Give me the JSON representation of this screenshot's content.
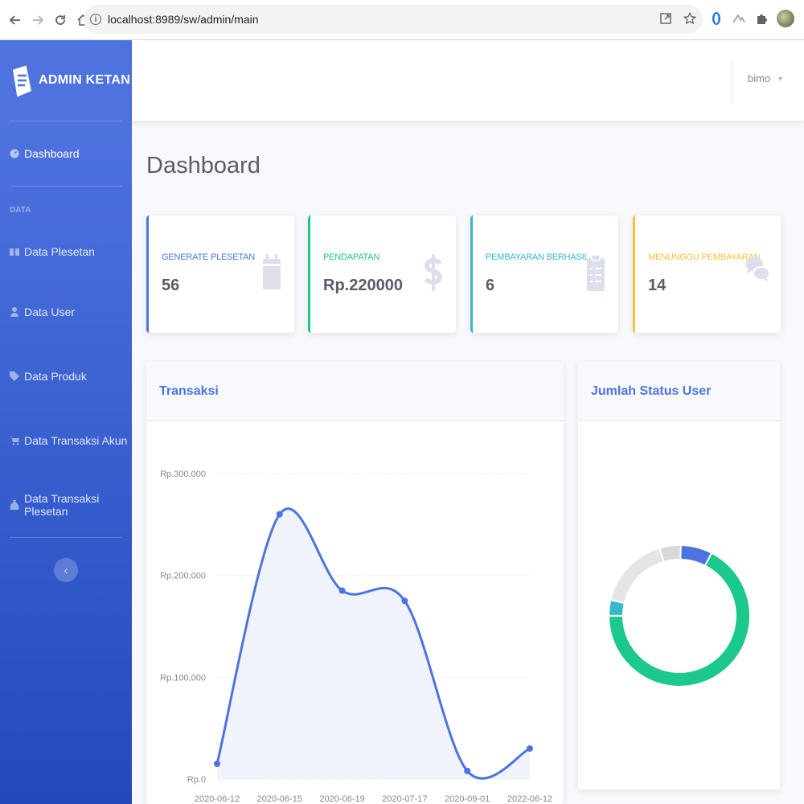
{
  "browser": {
    "url": "localhost:8989/sw/admin/main",
    "back_icon": "arrow-left",
    "forward_icon": "arrow-right",
    "reload_icon": "reload",
    "home_icon": "home"
  },
  "sidebar": {
    "brand": "ADMIN KETAN",
    "dashboard_label": "Dashboard",
    "heading": "DATA",
    "items": [
      {
        "label": "Data Plesetan",
        "icon": "book-icon"
      },
      {
        "label": "Data User",
        "icon": "user-icon"
      },
      {
        "label": "Data Produk",
        "icon": "tag-icon"
      },
      {
        "label": "Data Transaksi Akun",
        "icon": "cart-icon"
      },
      {
        "label": "Data Transaksi Plesetan",
        "icon": "money-bag-icon"
      }
    ],
    "toggle_symbol": "‹"
  },
  "topbar": {
    "user_name": "bimo"
  },
  "page": {
    "title": "Dashboard"
  },
  "stats": [
    {
      "label": "GENERATE PLESETAN",
      "value": "56",
      "color": "#4e73df",
      "icon": "calendar-icon"
    },
    {
      "label": "PENDAPATAN",
      "value": "Rp.220000",
      "color": "#1cc88a",
      "icon": "dollar-icon"
    },
    {
      "label": "PEMBAYARAN BERHASIL",
      "value": "6",
      "color": "#36b9cc",
      "icon": "clipboard-icon"
    },
    {
      "label": "MENUNGGU PEMBAYARAN",
      "value": "14",
      "color": "#f6c23e",
      "icon": "comments-icon"
    }
  ],
  "panels": {
    "transaksi_title": "Transaksi",
    "status_title": "Jumlah Status User"
  },
  "chart_data": [
    {
      "type": "area",
      "title": "Transaksi",
      "x": [
        "2020-06-12",
        "2020-06-15",
        "2020-06-19",
        "2020-07-17",
        "2020-09-01",
        "2022-06-12"
      ],
      "values": [
        15000,
        260000,
        185000,
        175000,
        8000,
        30000
      ],
      "yticks": [
        "Rp.0",
        "Rp.100,000",
        "Rp.200,000",
        "Rp.300,000"
      ],
      "ylim": [
        0,
        300000
      ],
      "line_color": "#4e73df",
      "fill_color": "#f1f3fb"
    },
    {
      "type": "pie",
      "title": "Jumlah Status User",
      "values": [
        6,
        56,
        3,
        14,
        4
      ],
      "colors": [
        "#4e73df",
        "#1cc88a",
        "#36b9cc",
        "#e5e5e5",
        "#d8d8d8"
      ]
    }
  ]
}
